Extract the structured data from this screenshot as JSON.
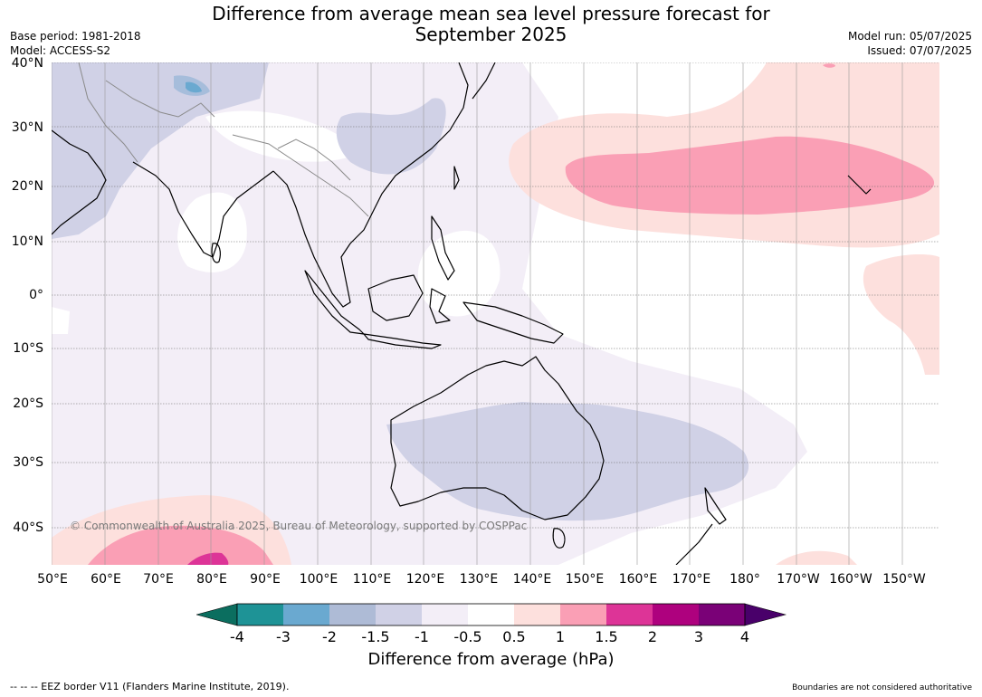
{
  "header": {
    "title_line1": "Difference from average mean sea level pressure forecast for",
    "title_line2": "September 2025",
    "base_period": "Base period: 1981-2018",
    "model": "Model: ACCESS-S2",
    "model_run": "Model run: 05/07/2025",
    "issued": "Issued: 07/07/2025"
  },
  "map": {
    "latitude_labels": [
      "40°N",
      "30°N",
      "20°N",
      "10°N",
      "0°",
      "10°S",
      "20°S",
      "30°S",
      "40°S"
    ],
    "longitude_labels": [
      "50°E",
      "60°E",
      "70°E",
      "80°E",
      "90°E",
      "100°E",
      "110°E",
      "120°E",
      "130°E",
      "140°E",
      "150°E",
      "160°E",
      "170°E",
      "180°",
      "170°W",
      "160°W",
      "150°W"
    ],
    "copyright": "© Commonwealth of Australia 2025, Bureau of Meteorology, supported by COSPPac",
    "colors": {
      "ocean_neutral": "#ffffff",
      "neg_0_5_to_1": "#f3eef7",
      "neg_1_to_1_5": "#d0d1e6",
      "neg_2": "#a6bddb",
      "neg_3": "#6aa9d0",
      "pos_0_5_to_1": "#fde0dd",
      "pos_1_to_1_5": "#fa9fb5",
      "pos_1_5_to_2": "#dd3497",
      "land_outline": "#000000",
      "border": "#808080"
    }
  },
  "colorbar": {
    "ticks": [
      "-4",
      "-3",
      "-2",
      "-1.5",
      "-1",
      "-0.5",
      "0.5",
      "1",
      "1.5",
      "2",
      "3",
      "4"
    ],
    "colors": [
      "#0b6e5f",
      "#1e9396",
      "#6aa9d0",
      "#aebbd6",
      "#d0d1e6",
      "#f3eef7",
      "#ffffff",
      "#fde0dd",
      "#fa9fb5",
      "#dd3497",
      "#ae017e",
      "#7a0177",
      "#49006a"
    ],
    "title": "Difference from average (hPa)"
  },
  "footer": {
    "eez_note": "--  --  -- EEZ border V11 (Flanders Marine Institute, 2019).",
    "boundaries_note": "Boundaries are not considered authoritative"
  }
}
